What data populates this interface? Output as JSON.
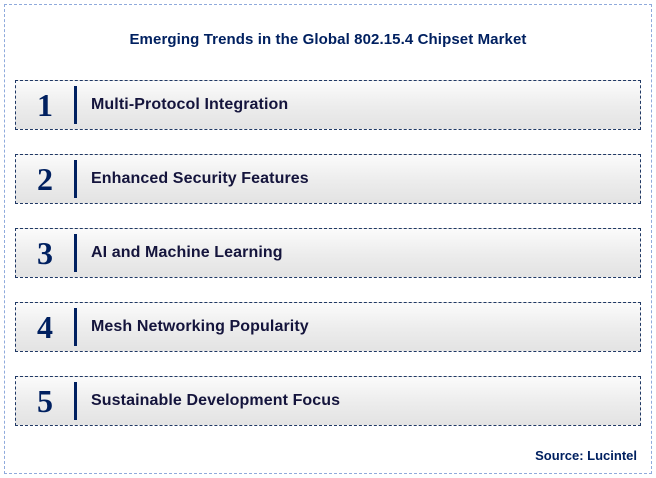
{
  "title": "Emerging Trends in the Global 802.15.4 Chipset Market",
  "trends": [
    {
      "number": "1",
      "label": "Multi-Protocol Integration"
    },
    {
      "number": "2",
      "label": "Enhanced Security Features"
    },
    {
      "number": "3",
      "label": "AI and Machine Learning"
    },
    {
      "number": "4",
      "label": "Mesh Networking Popularity"
    },
    {
      "number": "5",
      "label": "Sustainable Development Focus"
    }
  ],
  "source": "Source: Lucintel",
  "colors": {
    "navy": "#002060",
    "row_border": "#1f3864",
    "outer_border": "#8faadc",
    "label_text": "#14143c"
  }
}
